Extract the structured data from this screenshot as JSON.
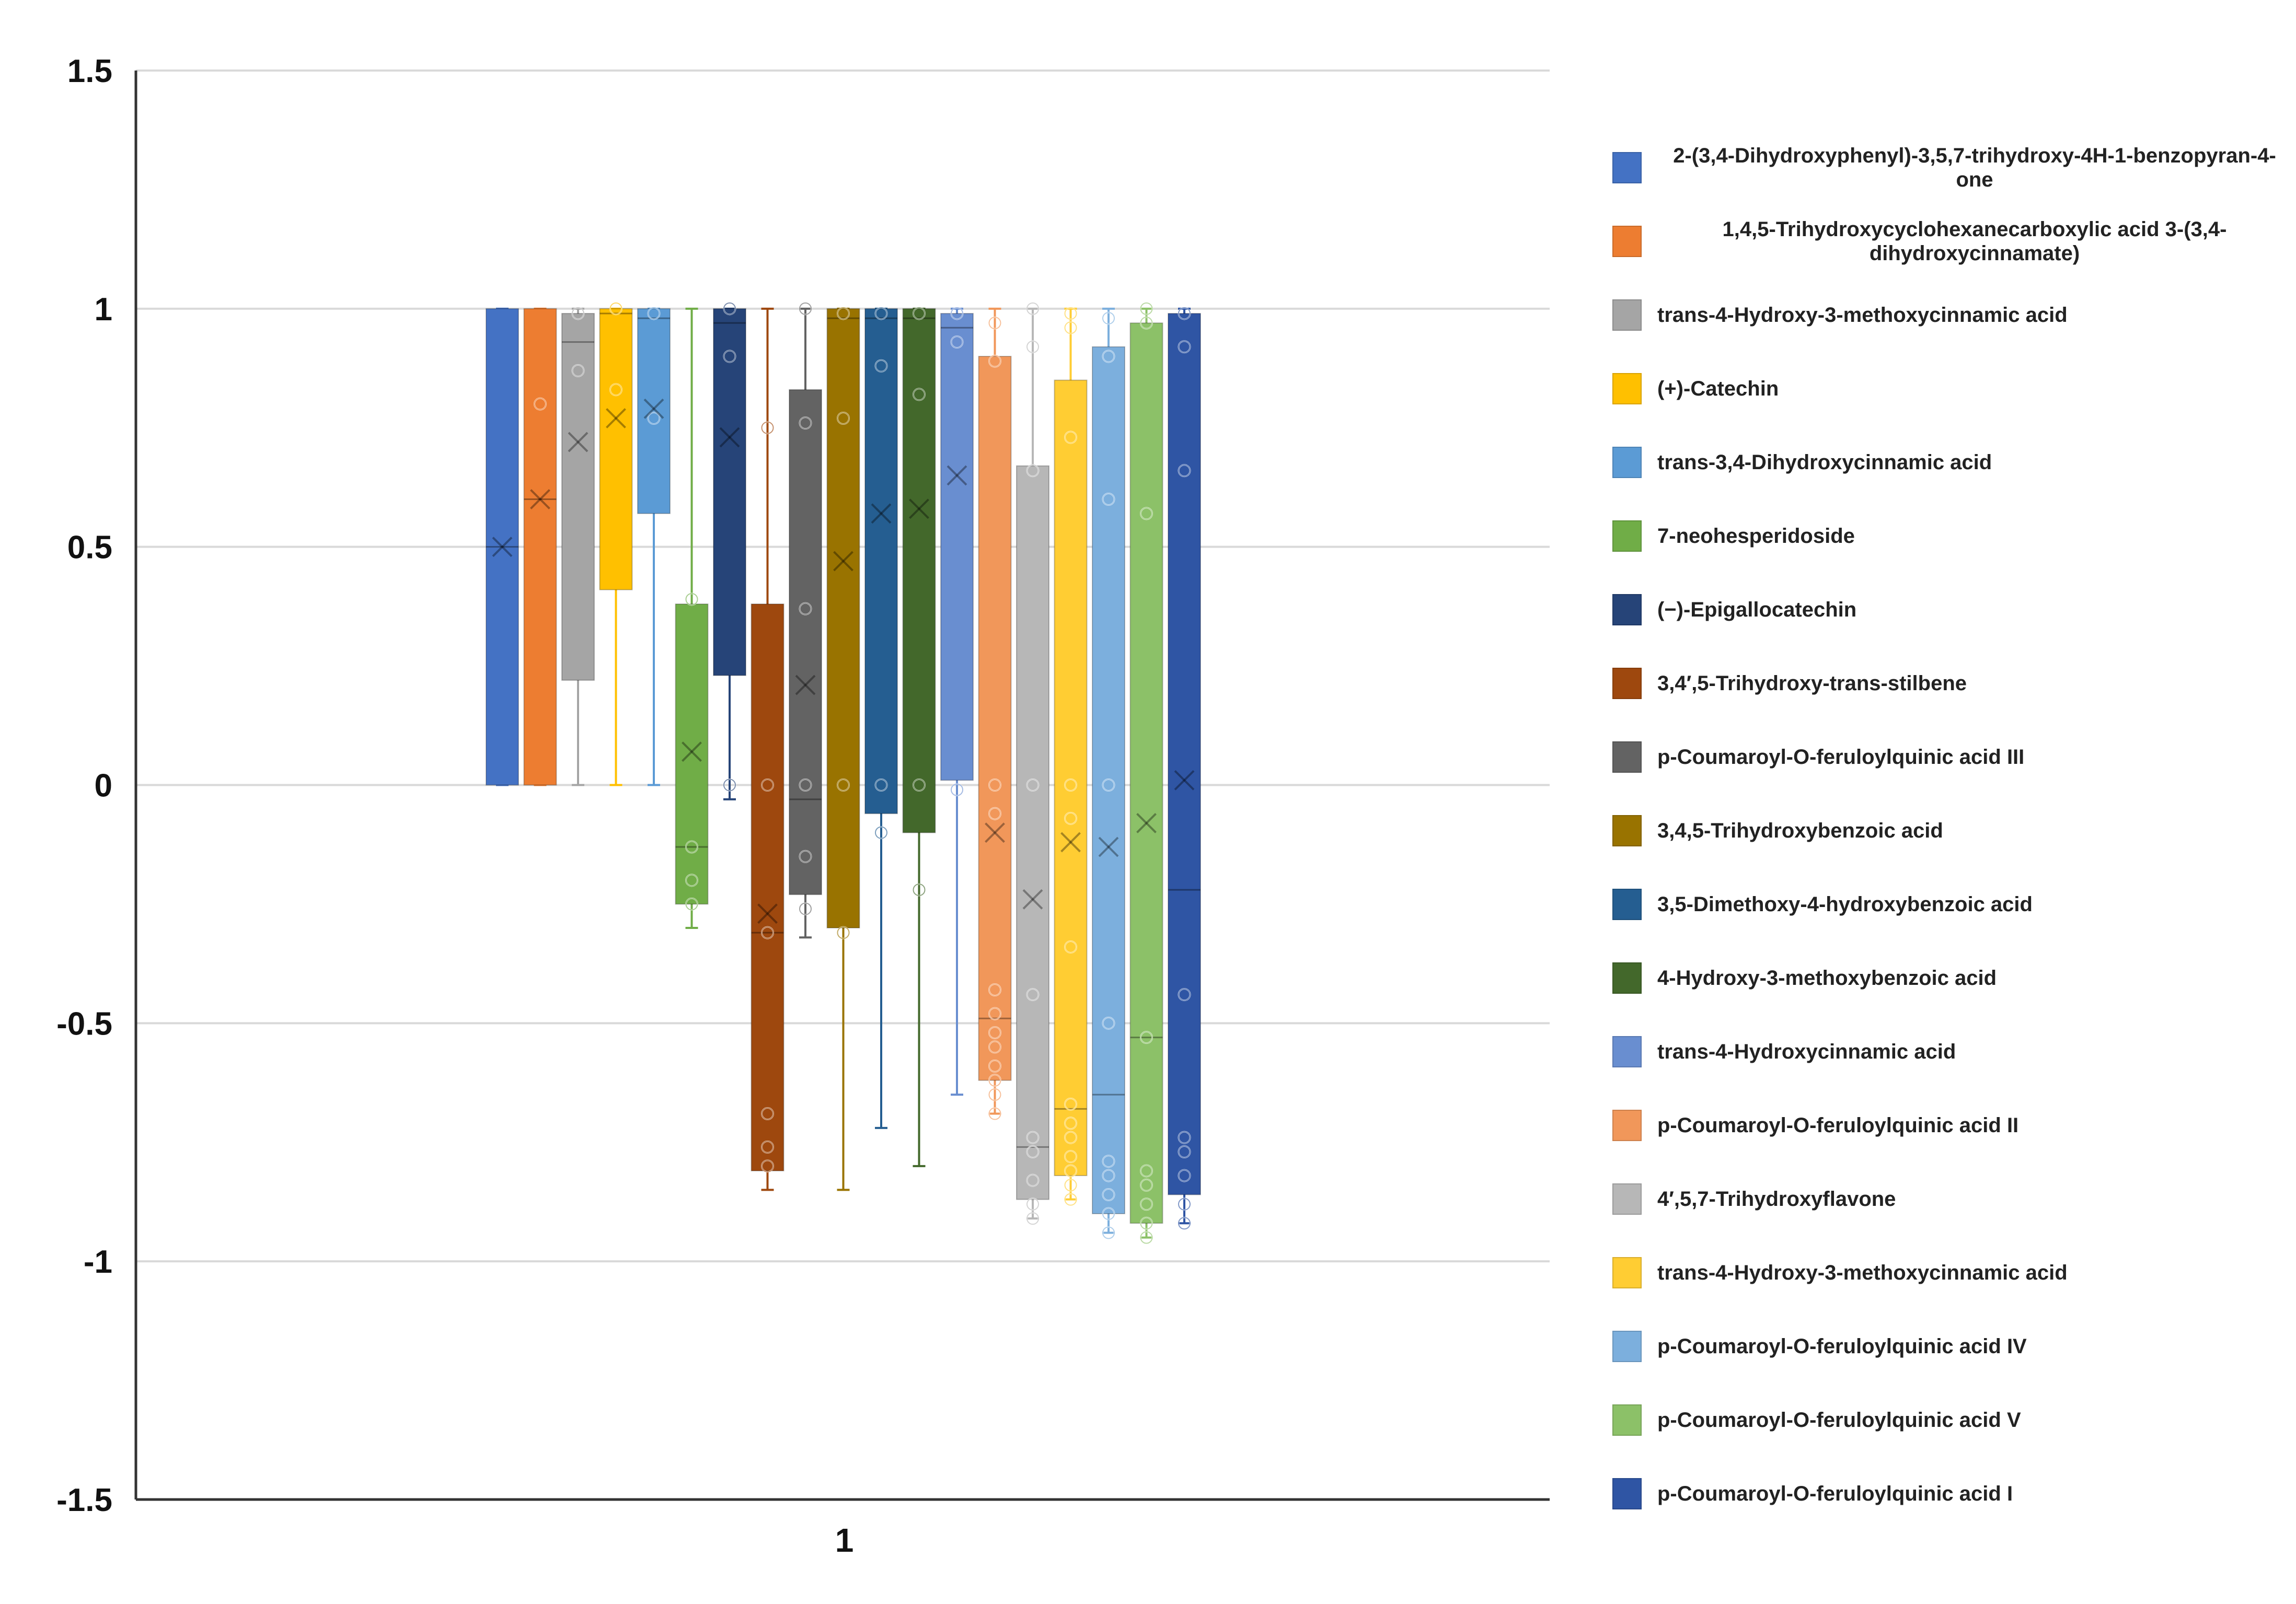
{
  "chart_data": {
    "type": "boxplot",
    "title": "",
    "xlabel": "",
    "ylabel": "",
    "categories": [
      "1"
    ],
    "ylim": [
      -1.5,
      1.5
    ],
    "yticks": [
      1.5,
      1,
      0.5,
      0,
      -0.5,
      -1,
      -1.5
    ],
    "ytick_labels": [
      "1.5",
      "1",
      "0.5",
      "0",
      "-0.5",
      "-1",
      "-1.5"
    ],
    "grid": true,
    "legend_position": "right",
    "series": [
      {
        "name": "2-(3,4-Dihydroxyphenyl)-3,5,7-trihydroxy-4H-1-benzopyran-4-one",
        "color": "#4472c4",
        "min": 0,
        "q1": 0,
        "median": 0.5,
        "q3": 1,
        "max": 1,
        "mean": 0.5,
        "points": []
      },
      {
        "name": "1,4,5-Trihydroxycyclohexanecarboxylic acid 3-(3,4-dihydroxycinnamate)",
        "color": "#ed7d31",
        "min": 0,
        "q1": 0,
        "median": 0.6,
        "q3": 1,
        "max": 1,
        "mean": 0.6,
        "points": [
          0.8
        ]
      },
      {
        "name": "trans-4-Hydroxy-3-methoxycinnamic acid",
        "color": "#a5a5a5",
        "min": 0,
        "q1": 0.22,
        "median": 0.93,
        "q3": 0.99,
        "max": 1,
        "mean": 0.72,
        "points": [
          0.99,
          0.87
        ]
      },
      {
        "name": "(+)-Catechin",
        "color": "#ffc000",
        "min": 0,
        "q1": 0.41,
        "median": 0.99,
        "q3": 1,
        "max": 1,
        "mean": 0.77,
        "points": [
          1,
          0.83
        ]
      },
      {
        "name": "trans-3,4-Dihydroxycinnamic acid",
        "color": "#5b9bd5",
        "min": 0,
        "q1": 0.57,
        "median": 0.98,
        "q3": 1,
        "max": 1,
        "mean": 0.79,
        "points": [
          0.99,
          0.77
        ]
      },
      {
        "name": "7-neohesperidoside",
        "color": "#70ad47",
        "min": -0.3,
        "q1": -0.25,
        "median": -0.13,
        "q3": 0.38,
        "max": 1,
        "mean": 0.07,
        "points": [
          0.39,
          -0.13,
          -0.2,
          -0.25
        ]
      },
      {
        "name": "(−)-Epigallocatechin",
        "color": "#264478",
        "min": -0.03,
        "q1": 0.23,
        "median": 0.97,
        "q3": 1,
        "max": 1,
        "mean": 0.73,
        "points": [
          1,
          0.9,
          0
        ]
      },
      {
        "name": "3,4′,5-Trihydroxy-trans-stilbene",
        "color": "#9e480e",
        "min": -0.85,
        "q1": -0.81,
        "median": -0.31,
        "q3": 0.38,
        "max": 1,
        "mean": -0.27,
        "points": [
          0.75,
          0,
          -0.31,
          -0.69,
          -0.76,
          -0.8
        ]
      },
      {
        "name": "p-Coumaroyl-O-feruloylquinic acid III",
        "color": "#636363",
        "min": -0.32,
        "q1": -0.23,
        "median": -0.03,
        "q3": 0.83,
        "max": 1,
        "mean": 0.21,
        "points": [
          1,
          0.76,
          0.37,
          0,
          -0.15,
          -0.26
        ]
      },
      {
        "name": "3,4,5-Trihydroxybenzoic acid",
        "color": "#997300",
        "min": -0.85,
        "q1": -0.3,
        "median": 0.98,
        "q3": 1,
        "max": 1,
        "mean": 0.47,
        "points": [
          0.99,
          0.77,
          0,
          -0.31
        ]
      },
      {
        "name": "3,5-Dimethoxy-4-hydroxybenzoic acid",
        "color": "#255e91",
        "min": -0.72,
        "q1": -0.06,
        "median": 0.98,
        "q3": 1,
        "max": 1,
        "mean": 0.57,
        "points": [
          0.99,
          0.88,
          0,
          -0.1
        ]
      },
      {
        "name": "4-Hydroxy-3-methoxybenzoic acid",
        "color": "#43682b",
        "min": -0.8,
        "q1": -0.1,
        "median": 0.98,
        "q3": 1,
        "max": 1,
        "mean": 0.58,
        "points": [
          0.99,
          0.82,
          0,
          -0.22
        ]
      },
      {
        "name": "trans-4-Hydroxycinnamic acid",
        "color": "#698ed0",
        "min": -0.65,
        "q1": 0.01,
        "median": 0.96,
        "q3": 0.99,
        "max": 1,
        "mean": 0.65,
        "points": [
          0.99,
          0.93,
          -0.01
        ]
      },
      {
        "name": "p-Coumaroyl-O-feruloylquinic acid II",
        "color": "#f1975a",
        "min": -0.69,
        "q1": -0.62,
        "median": -0.49,
        "q3": 0.9,
        "max": 1,
        "mean": -0.1,
        "points": [
          0.97,
          0.89,
          0,
          -0.06,
          -0.43,
          -0.48,
          -0.52,
          -0.55,
          -0.59,
          -0.62,
          -0.65,
          -0.69
        ]
      },
      {
        "name": "4′,5,7-Trihydroxyflavone",
        "color": "#b7b7b7",
        "min": -0.91,
        "q1": -0.87,
        "median": -0.76,
        "q3": 0.67,
        "max": 1,
        "mean": -0.24,
        "points": [
          1,
          0.92,
          0.66,
          0,
          -0.44,
          -0.74,
          -0.77,
          -0.83,
          -0.88,
          -0.91
        ]
      },
      {
        "name": "trans-4-Hydroxy-3-methoxycinnamic acid",
        "color": "#ffcd33",
        "min": -0.87,
        "q1": -0.82,
        "median": -0.68,
        "q3": 0.85,
        "max": 1,
        "mean": -0.12,
        "points": [
          0.99,
          0.96,
          0.73,
          0,
          -0.07,
          -0.34,
          -0.67,
          -0.71,
          -0.74,
          -0.78,
          -0.81,
          -0.84,
          -0.87
        ]
      },
      {
        "name": "p-Coumaroyl-O-feruloylquinic acid IV",
        "color": "#7cafdd",
        "min": -0.94,
        "q1": -0.9,
        "median": -0.65,
        "q3": 0.92,
        "max": 1,
        "mean": -0.13,
        "points": [
          0.98,
          0.9,
          0.6,
          0,
          -0.5,
          -0.79,
          -0.82,
          -0.86,
          -0.9,
          -0.94
        ]
      },
      {
        "name": "p-Coumaroyl-O-feruloylquinic acid V",
        "color": "#8cc168",
        "min": -0.95,
        "q1": -0.92,
        "median": -0.53,
        "q3": 0.97,
        "max": 1,
        "mean": -0.08,
        "points": [
          1,
          0.97,
          0.57,
          -0.53,
          -0.81,
          -0.84,
          -0.88,
          -0.92,
          -0.95
        ]
      },
      {
        "name": "p-Coumaroyl-O-feruloylquinic acid I",
        "color": "#2f55a4",
        "min": -0.92,
        "q1": -0.86,
        "median": -0.22,
        "q3": 0.99,
        "max": 1,
        "mean": 0.01,
        "points": [
          0.99,
          0.92,
          0.66,
          -0.44,
          -0.74,
          -0.77,
          -0.82,
          -0.88,
          -0.92
        ]
      }
    ]
  },
  "legend": {
    "items": [
      "2-(3,4-Dihydroxyphenyl)-3,5,7-trihydroxy-4H-1-benzopyran-4-one",
      "1,4,5-Trihydroxycyclohexanecarboxylic acid 3-(3,4-dihydroxycinnamate)",
      "trans-4-Hydroxy-3-methoxycinnamic acid",
      "(+)-Catechin",
      "trans-3,4-Dihydroxycinnamic acid",
      "7-neohesperidoside",
      "(−)-Epigallocatechin",
      "3,4′,5-Trihydroxy-trans-stilbene",
      "p-Coumaroyl-O-feruloylquinic acid III",
      "3,4,5-Trihydroxybenzoic acid",
      "3,5-Dimethoxy-4-hydroxybenzoic acid",
      "4-Hydroxy-3-methoxybenzoic acid",
      "trans-4-Hydroxycinnamic acid",
      "p-Coumaroyl-O-feruloylquinic acid II",
      "4′,5,7-Trihydroxyflavone",
      "trans-4-Hydroxy-3-methoxycinnamic acid",
      "p-Coumaroyl-O-feruloylquinic acid IV",
      "p-Coumaroyl-O-feruloylquinic acid V",
      "p-Coumaroyl-O-feruloylquinic acid I"
    ]
  }
}
